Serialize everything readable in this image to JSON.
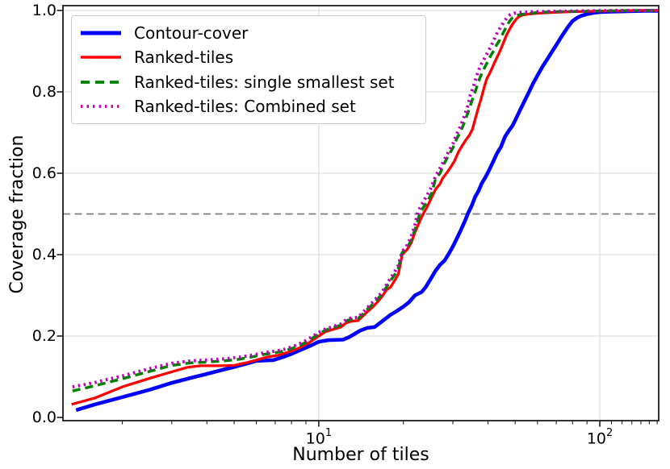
{
  "chart_data": {
    "type": "line",
    "title": "",
    "xlabel": "Number of tiles",
    "ylabel": "Coverage fraction",
    "x_scale": "log",
    "xlim": [
      1.23,
      162
    ],
    "ylim": [
      0,
      1
    ],
    "grid": "on",
    "legend_position": "upper-left",
    "y_ticks": [
      "0.0",
      "0.2",
      "0.4",
      "0.6",
      "0.8",
      "1.0"
    ],
    "x_major_ticks": [
      {
        "value": 10,
        "label_base": "10",
        "label_exp": "1"
      },
      {
        "value": 100,
        "label_base": "10",
        "label_exp": "2"
      }
    ],
    "x_minor_ticks": [
      2,
      3,
      4,
      5,
      6,
      7,
      8,
      9,
      20,
      30,
      40,
      50,
      60,
      70,
      80,
      90,
      110,
      120,
      130,
      140,
      150,
      160
    ],
    "reference_line": {
      "y": 0.5,
      "color": "#7f7f7f",
      "style": "dashed"
    },
    "colors": {
      "grid": "#d8d8d8",
      "spine": "#1c1c1c",
      "text": "#000000",
      "background": "#ffffff"
    },
    "series": [
      {
        "name": "Contour-cover",
        "color": "#0000ff",
        "line_style": "solid",
        "line_width": 4.6,
        "points": [
          [
            1.37,
            0.018
          ],
          [
            1.6,
            0.032
          ],
          [
            2,
            0.05
          ],
          [
            2.5,
            0.068
          ],
          [
            3,
            0.085
          ],
          [
            3.5,
            0.097
          ],
          [
            4,
            0.107
          ],
          [
            4.5,
            0.116
          ],
          [
            5,
            0.124
          ],
          [
            5.6,
            0.133
          ],
          [
            6,
            0.139
          ],
          [
            6.9,
            0.141
          ],
          [
            7.5,
            0.149
          ],
          [
            8,
            0.156
          ],
          [
            8.7,
            0.167
          ],
          [
            9.4,
            0.177
          ],
          [
            10,
            0.186
          ],
          [
            10.8,
            0.19
          ],
          [
            12.2,
            0.191
          ],
          [
            12.8,
            0.197
          ],
          [
            13.4,
            0.205
          ],
          [
            14,
            0.213
          ],
          [
            14.9,
            0.22
          ],
          [
            15.8,
            0.222
          ],
          [
            16.5,
            0.232
          ],
          [
            17.3,
            0.243
          ],
          [
            18,
            0.252
          ],
          [
            19,
            0.262
          ],
          [
            20,
            0.272
          ],
          [
            21,
            0.284
          ],
          [
            22,
            0.3
          ],
          [
            23.2,
            0.308
          ],
          [
            24,
            0.32
          ],
          [
            25,
            0.34
          ],
          [
            26,
            0.36
          ],
          [
            27,
            0.375
          ],
          [
            28,
            0.385
          ],
          [
            29,
            0.402
          ],
          [
            30,
            0.42
          ],
          [
            31,
            0.44
          ],
          [
            32,
            0.46
          ],
          [
            33,
            0.48
          ],
          [
            34,
            0.502
          ],
          [
            35,
            0.52
          ],
          [
            36,
            0.542
          ],
          [
            37,
            0.556
          ],
          [
            38,
            0.575
          ],
          [
            39,
            0.588
          ],
          [
            40,
            0.602
          ],
          [
            41.5,
            0.625
          ],
          [
            43,
            0.648
          ],
          [
            44.5,
            0.665
          ],
          [
            46,
            0.69
          ],
          [
            47.5,
            0.705
          ],
          [
            49,
            0.718
          ],
          [
            50,
            0.73
          ],
          [
            52,
            0.755
          ],
          [
            54,
            0.778
          ],
          [
            56,
            0.8
          ],
          [
            58,
            0.822
          ],
          [
            60,
            0.84
          ],
          [
            62.5,
            0.862
          ],
          [
            65,
            0.88
          ],
          [
            67.5,
            0.898
          ],
          [
            70,
            0.915
          ],
          [
            72.5,
            0.932
          ],
          [
            75,
            0.948
          ],
          [
            77.5,
            0.962
          ],
          [
            80,
            0.974
          ],
          [
            83,
            0.982
          ],
          [
            86,
            0.987
          ],
          [
            90,
            0.991
          ],
          [
            95,
            0.994
          ],
          [
            100,
            0.996
          ],
          [
            110,
            0.997
          ],
          [
            125,
            0.998
          ],
          [
            145,
            0.999
          ],
          [
            162,
            0.999
          ]
        ]
      },
      {
        "name": "Ranked-tiles",
        "color": "#ff0000",
        "line_style": "solid",
        "line_width": 3.3,
        "points": [
          [
            1.32,
            0.032
          ],
          [
            1.6,
            0.048
          ],
          [
            2,
            0.075
          ],
          [
            2.5,
            0.096
          ],
          [
            3,
            0.112
          ],
          [
            3.4,
            0.123
          ],
          [
            3.8,
            0.127
          ],
          [
            4.5,
            0.127
          ],
          [
            5,
            0.128
          ],
          [
            5.5,
            0.134
          ],
          [
            6,
            0.141
          ],
          [
            6.5,
            0.148
          ],
          [
            7.2,
            0.153
          ],
          [
            8,
            0.163
          ],
          [
            8.6,
            0.172
          ],
          [
            9.2,
            0.183
          ],
          [
            10,
            0.2
          ],
          [
            10.6,
            0.211
          ],
          [
            11.2,
            0.216
          ],
          [
            12,
            0.222
          ],
          [
            12.5,
            0.232
          ],
          [
            13,
            0.236
          ],
          [
            13.8,
            0.238
          ],
          [
            14.4,
            0.25
          ],
          [
            15,
            0.262
          ],
          [
            15.6,
            0.272
          ],
          [
            16.2,
            0.284
          ],
          [
            16.8,
            0.297
          ],
          [
            17.4,
            0.313
          ],
          [
            18,
            0.32
          ],
          [
            18.6,
            0.336
          ],
          [
            19.2,
            0.352
          ],
          [
            19.8,
            0.4
          ],
          [
            20.6,
            0.412
          ],
          [
            21.3,
            0.428
          ],
          [
            22,
            0.455
          ],
          [
            22.8,
            0.48
          ],
          [
            23.6,
            0.502
          ],
          [
            24.4,
            0.52
          ],
          [
            25.2,
            0.54
          ],
          [
            26,
            0.56
          ],
          [
            27,
            0.574
          ],
          [
            27.6,
            0.588
          ],
          [
            28.6,
            0.602
          ],
          [
            29.6,
            0.617
          ],
          [
            30.4,
            0.63
          ],
          [
            31.4,
            0.652
          ],
          [
            32.4,
            0.668
          ],
          [
            33.4,
            0.682
          ],
          [
            34.4,
            0.694
          ],
          [
            35.2,
            0.708
          ],
          [
            35.8,
            0.726
          ],
          [
            36.4,
            0.744
          ],
          [
            37,
            0.762
          ],
          [
            37.8,
            0.782
          ],
          [
            38.8,
            0.812
          ],
          [
            39.6,
            0.832
          ],
          [
            40.6,
            0.846
          ],
          [
            41.6,
            0.862
          ],
          [
            42.6,
            0.878
          ],
          [
            43.6,
            0.892
          ],
          [
            44.6,
            0.908
          ],
          [
            45.6,
            0.924
          ],
          [
            46.6,
            0.94
          ],
          [
            47.6,
            0.952
          ],
          [
            48.6,
            0.963
          ],
          [
            49.6,
            0.972
          ],
          [
            50.6,
            0.98
          ],
          [
            51.6,
            0.985
          ],
          [
            53,
            0.989
          ],
          [
            56,
            0.991
          ],
          [
            60,
            0.993
          ],
          [
            68,
            0.995
          ],
          [
            80,
            0.997
          ],
          [
            95,
            0.998
          ],
          [
            115,
            0.999
          ],
          [
            140,
            1.0
          ],
          [
            162,
            1.0
          ]
        ]
      },
      {
        "name": "Ranked-tiles: single smallest set",
        "color": "#008000",
        "line_style": "dashed",
        "line_width": 3.5,
        "points": [
          [
            1.33,
            0.065
          ],
          [
            1.6,
            0.078
          ],
          [
            2,
            0.095
          ],
          [
            2.5,
            0.113
          ],
          [
            3,
            0.128
          ],
          [
            3.5,
            0.134
          ],
          [
            4,
            0.136
          ],
          [
            4.6,
            0.139
          ],
          [
            5.2,
            0.143
          ],
          [
            5.8,
            0.149
          ],
          [
            6.4,
            0.155
          ],
          [
            7,
            0.159
          ],
          [
            7.6,
            0.164
          ],
          [
            8.2,
            0.172
          ],
          [
            8.8,
            0.181
          ],
          [
            9.4,
            0.193
          ],
          [
            10,
            0.205
          ],
          [
            10.6,
            0.215
          ],
          [
            11.2,
            0.22
          ],
          [
            12,
            0.227
          ],
          [
            12.5,
            0.237
          ],
          [
            13,
            0.241
          ],
          [
            13.8,
            0.243
          ],
          [
            14.4,
            0.255
          ],
          [
            15,
            0.268
          ],
          [
            15.6,
            0.279
          ],
          [
            16.2,
            0.291
          ],
          [
            16.8,
            0.303
          ],
          [
            17.4,
            0.32
          ],
          [
            18,
            0.336
          ],
          [
            18.6,
            0.35
          ],
          [
            19.2,
            0.367
          ],
          [
            19.8,
            0.405
          ],
          [
            20.6,
            0.417
          ],
          [
            21.3,
            0.434
          ],
          [
            22,
            0.462
          ],
          [
            22.9,
            0.502
          ],
          [
            23.6,
            0.517
          ],
          [
            24.4,
            0.532
          ],
          [
            25.2,
            0.55
          ],
          [
            26,
            0.585
          ],
          [
            27,
            0.6
          ],
          [
            28,
            0.625
          ],
          [
            29,
            0.645
          ],
          [
            30,
            0.662
          ],
          [
            31,
            0.686
          ],
          [
            32,
            0.703
          ],
          [
            33,
            0.726
          ],
          [
            34,
            0.75
          ],
          [
            35,
            0.776
          ],
          [
            36,
            0.8
          ],
          [
            37,
            0.825
          ],
          [
            38,
            0.845
          ],
          [
            39,
            0.861
          ],
          [
            40,
            0.876
          ],
          [
            41,
            0.89
          ],
          [
            42,
            0.902
          ],
          [
            43,
            0.916
          ],
          [
            44,
            0.927
          ],
          [
            45,
            0.941
          ],
          [
            46,
            0.953
          ],
          [
            47,
            0.966
          ],
          [
            48,
            0.976
          ],
          [
            49,
            0.983
          ],
          [
            50,
            0.987
          ],
          [
            52,
            0.99
          ],
          [
            55,
            0.992
          ],
          [
            60,
            0.995
          ],
          [
            70,
            0.997
          ],
          [
            85,
            0.998
          ],
          [
            105,
            0.999
          ],
          [
            130,
            1.0
          ],
          [
            162,
            1.0
          ]
        ]
      },
      {
        "name": "Ranked-tiles: Combined set",
        "color": "#bf00bf",
        "line_style": "dotted",
        "line_width": 4.0,
        "points": [
          [
            1.33,
            0.075
          ],
          [
            1.6,
            0.086
          ],
          [
            2,
            0.102
          ],
          [
            2.5,
            0.12
          ],
          [
            3,
            0.133
          ],
          [
            3.5,
            0.139
          ],
          [
            4,
            0.141
          ],
          [
            4.6,
            0.144
          ],
          [
            5.2,
            0.148
          ],
          [
            5.8,
            0.153
          ],
          [
            6.4,
            0.159
          ],
          [
            7,
            0.163
          ],
          [
            7.6,
            0.168
          ],
          [
            8.2,
            0.176
          ],
          [
            8.8,
            0.185
          ],
          [
            9.4,
            0.197
          ],
          [
            10,
            0.209
          ],
          [
            10.6,
            0.218
          ],
          [
            11.2,
            0.223
          ],
          [
            12,
            0.23
          ],
          [
            12.5,
            0.24
          ],
          [
            13,
            0.244
          ],
          [
            13.8,
            0.246
          ],
          [
            14.4,
            0.259
          ],
          [
            15,
            0.272
          ],
          [
            15.6,
            0.284
          ],
          [
            16.2,
            0.296
          ],
          [
            16.8,
            0.308
          ],
          [
            17.4,
            0.326
          ],
          [
            18,
            0.342
          ],
          [
            18.6,
            0.357
          ],
          [
            19.2,
            0.374
          ],
          [
            19.8,
            0.408
          ],
          [
            20.5,
            0.42
          ],
          [
            21.2,
            0.44
          ],
          [
            21.9,
            0.468
          ],
          [
            22.5,
            0.505
          ],
          [
            23.2,
            0.522
          ],
          [
            24,
            0.54
          ],
          [
            25,
            0.562
          ],
          [
            26,
            0.592
          ],
          [
            27,
            0.612
          ],
          [
            28,
            0.634
          ],
          [
            29,
            0.654
          ],
          [
            30,
            0.672
          ],
          [
            31,
            0.697
          ],
          [
            32,
            0.717
          ],
          [
            33,
            0.742
          ],
          [
            34,
            0.768
          ],
          [
            34.6,
            0.792
          ],
          [
            35.4,
            0.81
          ],
          [
            36.2,
            0.832
          ],
          [
            37,
            0.852
          ],
          [
            38,
            0.87
          ],
          [
            39,
            0.884
          ],
          [
            40,
            0.898
          ],
          [
            41,
            0.912
          ],
          [
            42,
            0.928
          ],
          [
            43,
            0.943
          ],
          [
            44,
            0.955
          ],
          [
            45,
            0.966
          ],
          [
            46,
            0.976
          ],
          [
            47,
            0.984
          ],
          [
            48,
            0.99
          ],
          [
            49.5,
            0.993
          ],
          [
            52,
            0.995
          ],
          [
            58,
            0.997
          ],
          [
            70,
            0.998
          ],
          [
            90,
            0.999
          ],
          [
            115,
            1.0
          ],
          [
            162,
            1.0
          ]
        ]
      }
    ]
  }
}
